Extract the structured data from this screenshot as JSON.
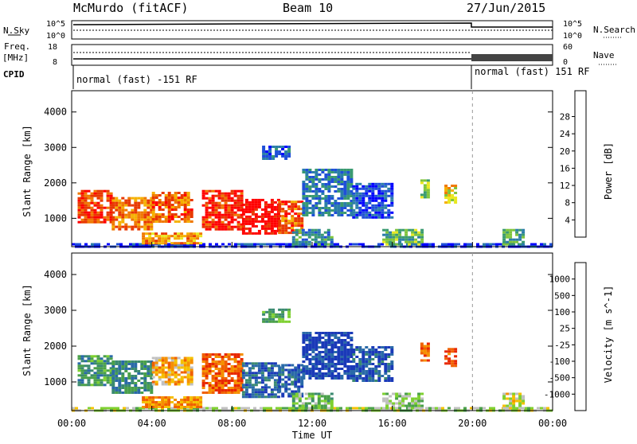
{
  "header": {
    "station": "McMurdo (fitACF)",
    "beam": "Beam 10",
    "date": "27/Jun/2015"
  },
  "status_panel": {
    "nsky_label": "N.Sky",
    "nsky_ticks": [
      "10^5",
      "10^0"
    ],
    "nsearch_label": "N.Search",
    "nsearch_ticks": [
      "10^5",
      "10^0"
    ],
    "freq_label": "Freq.",
    "freq_unit": "[MHz]",
    "freq_ticks": [
      "18",
      "8"
    ],
    "nave_label": "Nave",
    "nave_ticks": [
      "60",
      "0"
    ],
    "cpid_label": "CPID",
    "cpid_modes": [
      "normal (fast) -151 RF",
      "normal (fast) 151 RF"
    ]
  },
  "chart_data": [
    {
      "type": "heatmap",
      "name": "power",
      "ylabel": "Slant Range [km]",
      "yticks": [
        "1000",
        "2000",
        "3000",
        "4000"
      ],
      "ylim": [
        200,
        4600
      ],
      "xticks": [
        "00:00",
        "04:00",
        "08:00",
        "12:00",
        "16:00",
        "20:00",
        "00:00"
      ],
      "xlim": [
        0,
        24
      ],
      "colorbar": {
        "label": "Power [dB]",
        "ticks": [
          "4",
          "8",
          "12",
          "16",
          "20",
          "24",
          "28"
        ],
        "colors": [
          "#0000ff",
          "#1f4fd8",
          "#2b7ea8",
          "#3a9a70",
          "#7ec43c",
          "#e8e820",
          "#f5b000",
          "#f07800",
          "#e83800",
          "#ff0000"
        ]
      },
      "regions": [
        {
          "t0": 0.3,
          "t1": 2.0,
          "r0": 900,
          "r1": 1800,
          "level": 0.85
        },
        {
          "t0": 2.0,
          "t1": 4.0,
          "r0": 700,
          "r1": 1600,
          "level": 0.75
        },
        {
          "t0": 4.0,
          "t1": 6.0,
          "r0": 900,
          "r1": 1750,
          "level": 0.8
        },
        {
          "t0": 6.5,
          "t1": 8.5,
          "r0": 700,
          "r1": 1800,
          "level": 0.9
        },
        {
          "t0": 8.5,
          "t1": 10.3,
          "r0": 600,
          "r1": 1550,
          "level": 1.0
        },
        {
          "t0": 10.3,
          "t1": 11.5,
          "r0": 600,
          "r1": 1500,
          "level": 0.8
        },
        {
          "t0": 11.5,
          "t1": 14.0,
          "r0": 1100,
          "r1": 2400,
          "level": 0.25
        },
        {
          "t0": 14.0,
          "t1": 16.0,
          "r0": 1000,
          "r1": 2000,
          "level": 0.15
        },
        {
          "t0": 17.4,
          "t1": 17.8,
          "r0": 1600,
          "r1": 2100,
          "level": 0.45
        },
        {
          "t0": 18.6,
          "t1": 19.1,
          "r0": 1450,
          "r1": 1950,
          "level": 0.6
        },
        {
          "t0": 9.5,
          "t1": 10.9,
          "r0": 2700,
          "r1": 3050,
          "level": 0.2
        },
        {
          "t0": 0.0,
          "t1": 24.0,
          "r0": 210,
          "r1": 300,
          "level": 0.1
        },
        {
          "t0": 3.5,
          "t1": 6.5,
          "r0": 300,
          "r1": 600,
          "level": 0.7
        },
        {
          "t0": 11.0,
          "t1": 13.0,
          "r0": 250,
          "r1": 700,
          "level": 0.3
        },
        {
          "t0": 15.5,
          "t1": 17.5,
          "r0": 250,
          "r1": 700,
          "level": 0.4
        },
        {
          "t0": 21.5,
          "t1": 22.5,
          "r0": 250,
          "r1": 700,
          "level": 0.35
        }
      ]
    },
    {
      "type": "heatmap",
      "name": "velocity",
      "ylabel": "Slant Range [km]",
      "yticks": [
        "1000",
        "2000",
        "3000",
        "4000"
      ],
      "ylim": [
        200,
        4600
      ],
      "xticks": [
        "00:00",
        "04:00",
        "08:00",
        "12:00",
        "16:00",
        "20:00",
        "00:00"
      ],
      "xlim": [
        0,
        24
      ],
      "xlabel": "Time UT",
      "colorbar": {
        "label": "Velocity [m s^-1]",
        "ticks": [
          "1000",
          "500",
          "100",
          "25",
          "-25",
          "-100",
          "-500",
          "-1000"
        ],
        "colors": [
          "#1a3ab8",
          "#2a6aa8",
          "#3a8a70",
          "#4aa04a",
          "#7ed030",
          "#c0c0c0",
          "#f5c000",
          "#f59000",
          "#f06000",
          "#e82800"
        ]
      },
      "regions": [
        {
          "t0": 0.3,
          "t1": 2.0,
          "r0": 900,
          "r1": 1750,
          "level": 0.3
        },
        {
          "t0": 2.0,
          "t1": 4.0,
          "r0": 700,
          "r1": 1600,
          "level": 0.25
        },
        {
          "t0": 4.0,
          "t1": 6.0,
          "r0": 900,
          "r1": 1700,
          "level": 0.7
        },
        {
          "t0": 6.5,
          "t1": 8.5,
          "r0": 700,
          "r1": 1800,
          "level": 0.85
        },
        {
          "t0": 8.5,
          "t1": 10.3,
          "r0": 600,
          "r1": 1550,
          "level": 0.15
        },
        {
          "t0": 10.3,
          "t1": 11.5,
          "r0": 600,
          "r1": 1500,
          "level": 0.1
        },
        {
          "t0": 11.5,
          "t1": 14.0,
          "r0": 1100,
          "r1": 2400,
          "level": 0.05
        },
        {
          "t0": 14.0,
          "t1": 16.0,
          "r0": 1000,
          "r1": 2000,
          "level": 0.1
        },
        {
          "t0": 17.4,
          "t1": 17.8,
          "r0": 1600,
          "r1": 2100,
          "level": 0.85
        },
        {
          "t0": 18.6,
          "t1": 19.1,
          "r0": 1450,
          "r1": 1950,
          "level": 0.9
        },
        {
          "t0": 9.5,
          "t1": 10.9,
          "r0": 2700,
          "r1": 3050,
          "level": 0.35
        },
        {
          "t0": 0.0,
          "t1": 24.0,
          "r0": 210,
          "r1": 300,
          "level": 0.5
        },
        {
          "t0": 3.5,
          "t1": 6.5,
          "r0": 300,
          "r1": 600,
          "level": 0.75
        },
        {
          "t0": 11.0,
          "t1": 13.0,
          "r0": 250,
          "r1": 700,
          "level": 0.4
        },
        {
          "t0": 15.5,
          "t1": 17.5,
          "r0": 250,
          "r1": 700,
          "level": 0.45
        },
        {
          "t0": 21.5,
          "t1": 22.5,
          "r0": 250,
          "r1": 700,
          "level": 0.6
        }
      ]
    }
  ]
}
